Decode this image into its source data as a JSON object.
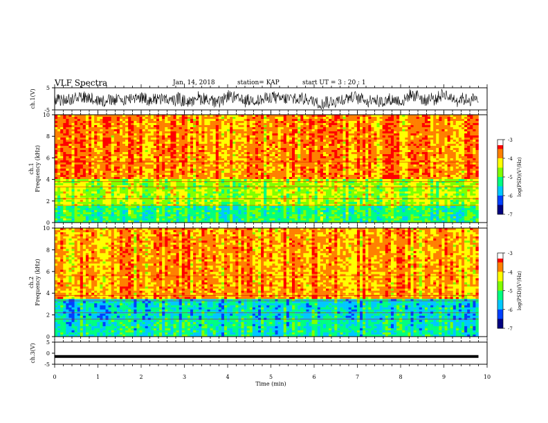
{
  "header": {
    "title": "VLF Spectra",
    "date": "Jan. 14, 2018",
    "station": "station= KAP",
    "start_ut": "start UT =  3 : 20 : 1"
  },
  "chart_data": [
    {
      "type": "line",
      "id": "ch1-waveform",
      "ylabel": "ch.1(V)",
      "ylim": [
        -5,
        5
      ],
      "ytick_labels": [
        "5",
        "-5"
      ],
      "x_range_min": [
        0,
        9.8
      ],
      "description_values": "noisy waveform fluctuating roughly between -4 and +4 V",
      "color": "#000000"
    },
    {
      "type": "heatmap",
      "id": "ch1-spectrogram",
      "ylabel": "ch.1\nFrequency (kHz)",
      "ylabel_lines": [
        "ch.1",
        "Frequency (kHz)"
      ],
      "ylim": [
        0,
        10
      ],
      "ytick_labels": [
        "0",
        "2",
        "4",
        "6",
        "8",
        "10"
      ],
      "x_range_min": [
        0,
        9.8
      ],
      "colorbar": {
        "label": "log(PSD)(V²/Hz)",
        "range": [
          -7,
          -3
        ],
        "tick_labels": [
          "-3",
          "-4",
          "-5",
          "-6",
          "-7"
        ]
      },
      "bands": [
        {
          "freq_range_khz": [
            0,
            1.5
          ],
          "level": -5.2
        },
        {
          "freq_range_khz": [
            1.5,
            4
          ],
          "level": -4.6
        },
        {
          "freq_range_khz": [
            4,
            10
          ],
          "level": -3.8
        }
      ]
    },
    {
      "type": "heatmap",
      "id": "ch2-spectrogram",
      "ylabel": "ch.2\nFrequency (kHz)",
      "ylabel_lines": [
        "ch.2",
        "Frequency (kHz)"
      ],
      "ylim": [
        0,
        10
      ],
      "ytick_labels": [
        "0",
        "2",
        "4",
        "6",
        "8",
        "10"
      ],
      "x_range_min": [
        0,
        9.8
      ],
      "colorbar": {
        "label": "log(PSD)(V²/Hz)",
        "range": [
          -7,
          -3
        ],
        "tick_labels": [
          "-3",
          "-4",
          "-5",
          "-6",
          "-7"
        ]
      },
      "bands": [
        {
          "freq_range_khz": [
            0,
            1.5
          ],
          "level": -5.4
        },
        {
          "freq_range_khz": [
            1.5,
            3.5
          ],
          "level": -5.6
        },
        {
          "freq_range_khz": [
            3.5,
            10
          ],
          "level": -3.9
        }
      ]
    },
    {
      "type": "line",
      "id": "ch3-waveform",
      "ylabel": "ch.3(V)",
      "ylim": [
        -5,
        5
      ],
      "ytick_labels": [
        "5",
        "0",
        "-5"
      ],
      "x_range_min": [
        0,
        9.8
      ],
      "values_constant": -1.5,
      "color": "#000000"
    }
  ],
  "x_axis": {
    "label": "Time (min)",
    "xlim": [
      0,
      10
    ],
    "tick_labels": [
      "0",
      "1",
      "2",
      "3",
      "4",
      "5",
      "6",
      "7",
      "8",
      "9",
      "10"
    ]
  },
  "colormap": [
    "#000080",
    "#0040ff",
    "#00c8ff",
    "#00ff80",
    "#80ff00",
    "#ffff00",
    "#ff8000",
    "#ff0000",
    "#ffffff"
  ]
}
